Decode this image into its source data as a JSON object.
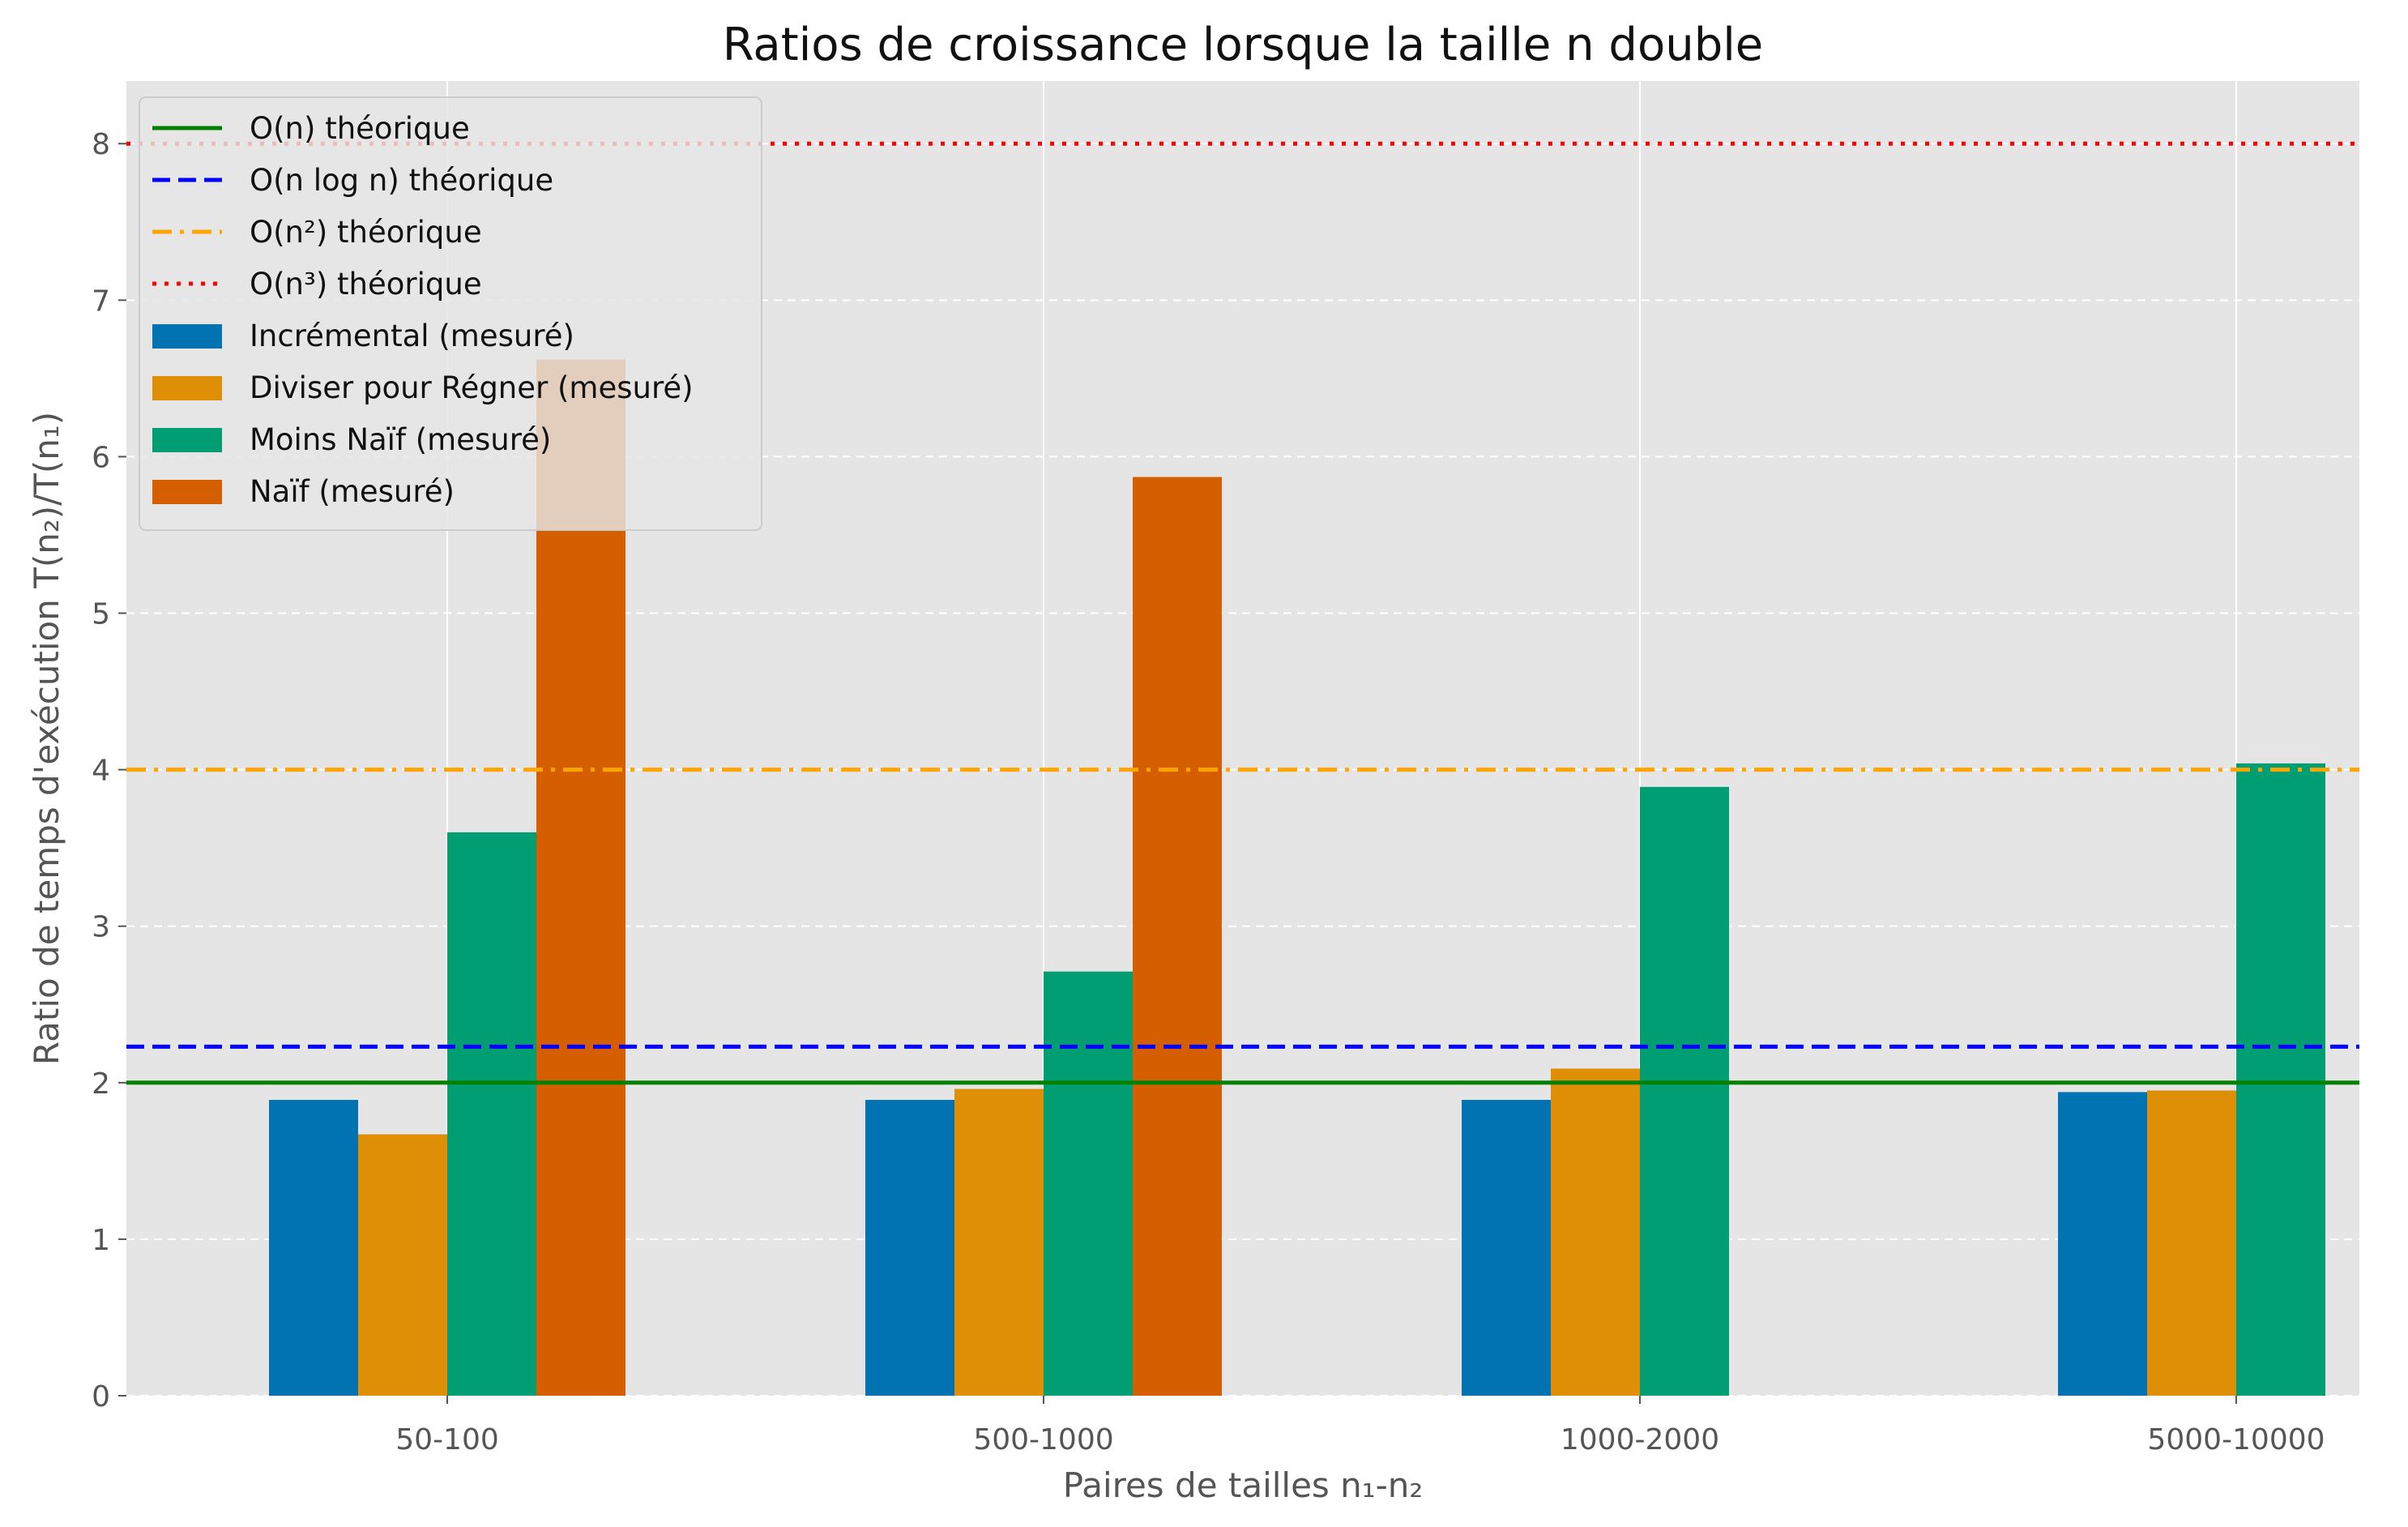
{
  "chart_data": {
    "type": "bar",
    "title": "Ratios de croissance lorsque la taille n double",
    "xlabel": "Paires de tailles n₁-n₂",
    "ylabel": "Ratio de temps d'exécution T(n₂)/T(n₁)",
    "categories": [
      "50-100",
      "500-1000",
      "1000-2000",
      "5000-10000"
    ],
    "ylim": [
      0,
      8.4
    ],
    "yticks": [
      "0",
      "1",
      "2",
      "3",
      "4",
      "5",
      "6",
      "7",
      "8"
    ],
    "grid": true,
    "legend_position": "top-left",
    "series": [
      {
        "name": "Incrémental (mesuré)",
        "color": "#0173b2",
        "values": [
          1.89,
          1.89,
          1.89,
          1.94
        ]
      },
      {
        "name": "Diviser pour Régner (mesuré)",
        "color": "#de8f05",
        "values": [
          1.67,
          1.96,
          2.09,
          1.95
        ]
      },
      {
        "name": "Moins Naïf (mesuré)",
        "color": "#029e73",
        "values": [
          3.6,
          2.71,
          3.89,
          4.04
        ]
      },
      {
        "name": "Naïf (mesuré)",
        "color": "#d55e00",
        "values": [
          6.62,
          5.87,
          null,
          null
        ]
      }
    ],
    "reference_lines": [
      {
        "name": "O(n) théorique",
        "value": 2.0,
        "color": "#008000",
        "style": "solid"
      },
      {
        "name": "O(n log n) théorique",
        "value": 2.23,
        "color": "#0000ff",
        "style": "dashed"
      },
      {
        "name": "O(n²) théorique",
        "value": 4.0,
        "color": "#ffa500",
        "style": "dashdot"
      },
      {
        "name": "O(n³) théorique",
        "value": 8.0,
        "color": "#ff0000",
        "style": "dotted"
      }
    ]
  }
}
